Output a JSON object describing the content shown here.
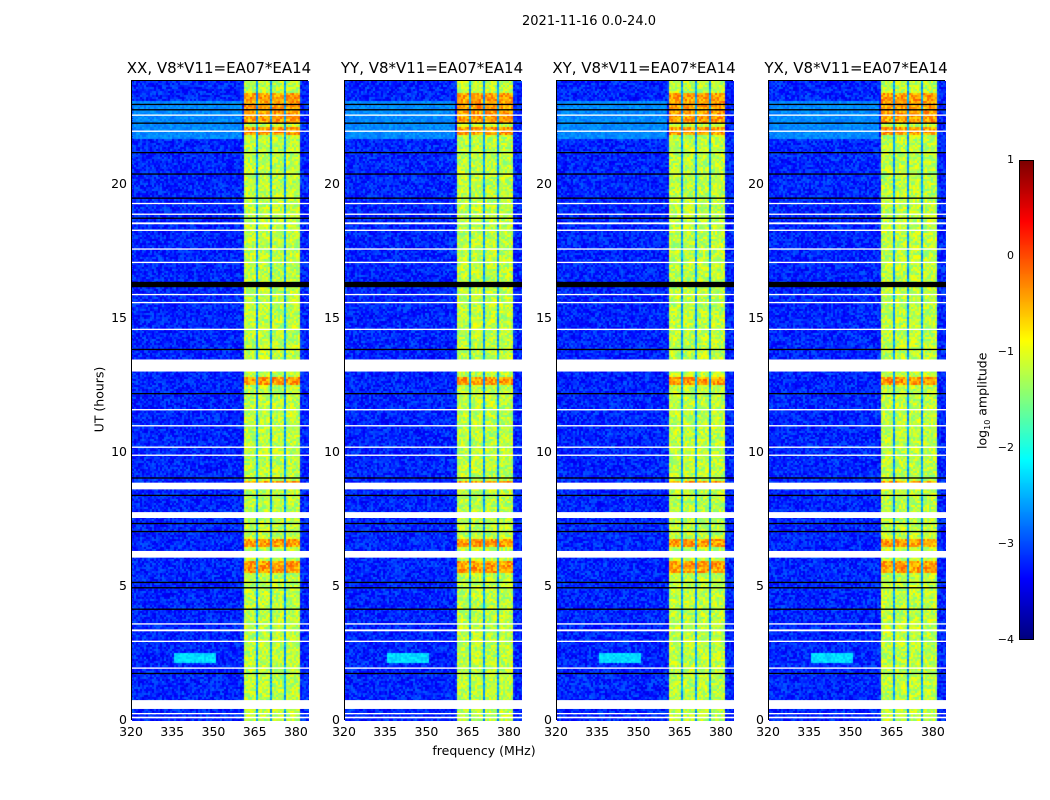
{
  "chart_data": {
    "type": "heatmap",
    "title": "2021-11-16 0.0-24.0",
    "xlabel": "frequency (MHz)",
    "ylabel": "UT (hours)",
    "xlim": [
      320,
      384.4
    ],
    "ylim": [
      0,
      23.9
    ],
    "xticks": [
      "320",
      "335",
      "350",
      "365",
      "380"
    ],
    "xtick_values": [
      320,
      335,
      350,
      365,
      380
    ],
    "yticks": [
      "0",
      "5",
      "10",
      "15",
      "20"
    ],
    "ytick_values": [
      0,
      5,
      10,
      15,
      20
    ],
    "panels": [
      {
        "title": "XX, V8*V11=EA07*EA14"
      },
      {
        "title": "YY, V8*V11=EA07*EA14"
      },
      {
        "title": "XY, V8*V11=EA07*EA14"
      },
      {
        "title": "YX, V8*V11=EA07*EA14"
      }
    ],
    "background_level": -3.2,
    "band": {
      "range_mhz": [
        360.7,
        380.4
      ],
      "level": -1.2,
      "gaps_mhz": [
        365.1,
        370.2,
        375.3
      ]
    },
    "bright_hours": [
      [
        22.4,
        23.5
      ],
      [
        21.9,
        22.2
      ],
      [
        5.6,
        6.0
      ],
      [
        6.5,
        6.8
      ],
      [
        12.6,
        12.9
      ],
      [
        8.8,
        9.0
      ]
    ],
    "flagged_white": [
      [
        0.45,
        0.78
      ],
      [
        0.1,
        0.16
      ],
      [
        0.25,
        0.3
      ],
      [
        1.95,
        2.0
      ],
      [
        2.95,
        3.0
      ],
      [
        3.35,
        3.42
      ],
      [
        3.6,
        3.65
      ],
      [
        6.1,
        6.35
      ],
      [
        7.58,
        7.8
      ],
      [
        8.65,
        8.9
      ],
      [
        9.9,
        9.95
      ],
      [
        10.2,
        10.25
      ],
      [
        11.0,
        11.05
      ],
      [
        11.6,
        11.65
      ],
      [
        13.05,
        13.5
      ],
      [
        14.6,
        14.65
      ],
      [
        15.6,
        15.65
      ],
      [
        15.9,
        15.95
      ],
      [
        17.1,
        17.15
      ],
      [
        17.6,
        17.65
      ],
      [
        18.3,
        18.35
      ],
      [
        18.55,
        18.62
      ],
      [
        18.9,
        18.95
      ],
      [
        19.3,
        19.35
      ],
      [
        22.0,
        22.05
      ],
      [
        22.6,
        22.65
      ]
    ],
    "flagged_black": [
      [
        1.75,
        1.8
      ],
      [
        4.15,
        4.2
      ],
      [
        4.95,
        5.0
      ],
      [
        5.15,
        5.2
      ],
      [
        7.05,
        7.1
      ],
      [
        7.35,
        7.4
      ],
      [
        8.4,
        8.45
      ],
      [
        9.05,
        9.1
      ],
      [
        12.2,
        12.25
      ],
      [
        13.85,
        13.9
      ],
      [
        16.2,
        16.4
      ],
      [
        18.75,
        18.8
      ],
      [
        19.5,
        19.55
      ],
      [
        20.4,
        20.45
      ],
      [
        21.2,
        21.25
      ],
      [
        22.3,
        22.35
      ],
      [
        22.8,
        22.85
      ],
      [
        23.0,
        23.05
      ]
    ],
    "colorbar": {
      "label": "log10 amplitude",
      "ticks": [
        "1",
        "0",
        "−1",
        "−2",
        "−3",
        "−4"
      ],
      "tick_values": [
        1,
        0,
        -1,
        -2,
        -3,
        -4
      ],
      "range": [
        -4,
        1
      ],
      "colormap": "jet"
    }
  }
}
